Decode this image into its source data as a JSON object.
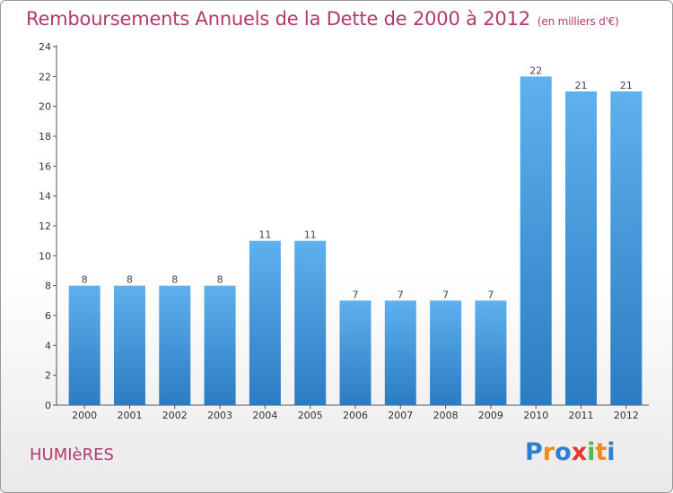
{
  "header": {
    "title": "Remboursements Annuels de la Dette de 2000 à 2012",
    "unit": "(en milliers d'€)"
  },
  "footer": {
    "commune": "HUMIèRES",
    "logo_letters": [
      "P",
      "r",
      "o",
      "x",
      "i",
      "t",
      "i"
    ],
    "logo_colors": [
      "#2d7fd0",
      "#f08a1c",
      "#2d7fd0",
      "#e03a2e",
      "#58b847",
      "#f08a1c",
      "#2d7fd0"
    ]
  },
  "chart_data": {
    "type": "bar",
    "title": "Remboursements Annuels de la Dette de 2000 à 2012",
    "xlabel": "",
    "ylabel": "",
    "categories": [
      "2000",
      "2001",
      "2002",
      "2003",
      "2004",
      "2005",
      "2006",
      "2007",
      "2008",
      "2009",
      "2010",
      "2011",
      "2012"
    ],
    "values": [
      8,
      8,
      8,
      8,
      11,
      11,
      7,
      7,
      7,
      7,
      22,
      21,
      21
    ],
    "ylim": [
      0,
      24
    ],
    "yticks": [
      0,
      2,
      4,
      6,
      8,
      10,
      12,
      14,
      16,
      18,
      20,
      22,
      24
    ],
    "grid": false,
    "legend": "none",
    "bar_color_top": "#5fb0ee",
    "bar_color_bottom": "#2b7cc2"
  }
}
